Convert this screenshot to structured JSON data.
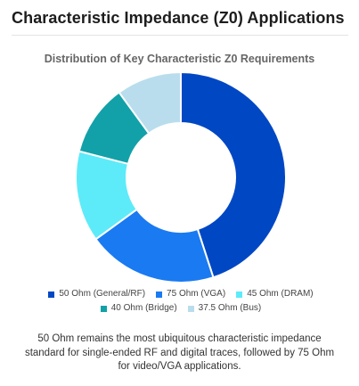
{
  "header": {
    "title": "Characteristic Impedance (Z0) Applications"
  },
  "chart_data": {
    "type": "pie",
    "variant": "doughnut",
    "title": "Distribution of Key Characteristic Z0 Requirements",
    "categories": [
      "50 Ohm (General/RF)",
      "75 Ohm (VGA)",
      "45 Ohm (DRAM)",
      "40 Ohm (Bridge)",
      "37.5 Ohm (Bus)"
    ],
    "values": [
      45,
      20,
      14,
      11,
      10
    ],
    "colors": [
      "#0047C4",
      "#1A7AF2",
      "#5DEBF9",
      "#12A1A8",
      "#B9DDED"
    ],
    "legend_position": "bottom"
  },
  "caption": "50 Ohm remains the most ubiquitous characteristic impedance standard for single-ended RF and digital traces, followed by 75 Ohm for video/VGA applications."
}
